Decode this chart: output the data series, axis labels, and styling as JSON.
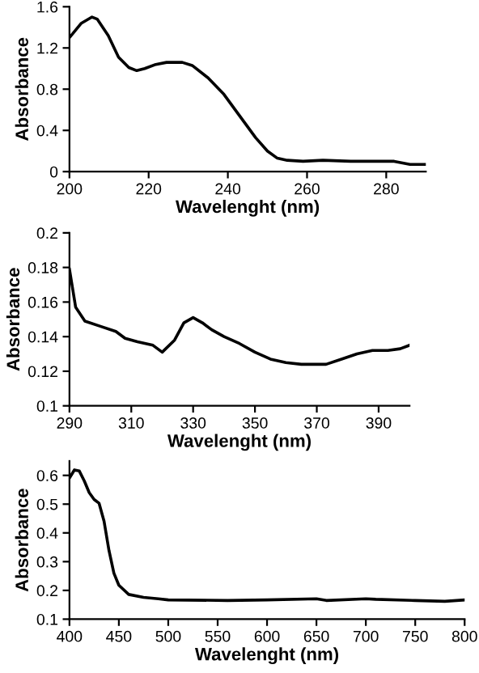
{
  "chart_data": [
    {
      "type": "line",
      "xlabel": "Wavelenght (nm)",
      "ylabel": "Absorbance",
      "xlim": [
        200,
        290
      ],
      "xticks": [
        200,
        220,
        240,
        260,
        280
      ],
      "ylim": [
        0,
        1.6
      ],
      "yticks": [
        0,
        0.4,
        0.8,
        1.2,
        1.6
      ],
      "grid": false,
      "series": [
        {
          "color": "#000000",
          "x": [
            200,
            203,
            205.7,
            207,
            209.8,
            212.4,
            215,
            217,
            219,
            221.8,
            224.5,
            228.5,
            231,
            235,
            239,
            243,
            247,
            250,
            252.5,
            255,
            259,
            264,
            271,
            282,
            286,
            290
          ],
          "values": [
            1.3,
            1.44,
            1.5,
            1.48,
            1.32,
            1.11,
            1.01,
            0.98,
            1.0,
            1.04,
            1.06,
            1.06,
            1.03,
            0.91,
            0.75,
            0.54,
            0.33,
            0.2,
            0.13,
            0.11,
            0.1,
            0.11,
            0.1,
            0.1,
            0.07,
            0.07
          ]
        }
      ]
    },
    {
      "type": "line",
      "xlabel": "Wavelenght (nm)",
      "ylabel": "Absorbance",
      "xlim": [
        290,
        400
      ],
      "xticks": [
        290,
        310,
        330,
        350,
        370,
        390
      ],
      "ylim": [
        0.1,
        0.2
      ],
      "yticks": [
        0.1,
        0.12,
        0.14,
        0.16,
        0.18,
        0.2
      ],
      "grid": false,
      "series": [
        {
          "color": "#000000",
          "x": [
            290,
            292,
            295,
            300,
            305,
            308,
            312,
            317,
            320,
            324,
            327,
            330,
            333,
            336,
            340,
            345,
            350,
            355,
            360,
            365,
            373,
            378,
            383,
            388,
            393,
            397,
            400
          ],
          "values": [
            0.179,
            0.157,
            0.149,
            0.146,
            0.143,
            0.139,
            0.137,
            0.135,
            0.131,
            0.138,
            0.148,
            0.151,
            0.148,
            0.144,
            0.14,
            0.136,
            0.131,
            0.127,
            0.125,
            0.124,
            0.124,
            0.127,
            0.13,
            0.132,
            0.132,
            0.133,
            0.135
          ]
        }
      ]
    },
    {
      "type": "line",
      "xlabel": "Wavelenght (nm)",
      "ylabel": "Absorbance",
      "xlim": [
        400,
        800
      ],
      "xticks": [
        400,
        450,
        500,
        550,
        600,
        650,
        700,
        750,
        800
      ],
      "ylim": [
        0.1,
        0.65
      ],
      "yticks": [
        0.1,
        0.2,
        0.3,
        0.4,
        0.5,
        0.6
      ],
      "grid": false,
      "series": [
        {
          "color": "#000000",
          "x": [
            400,
            405,
            410,
            415,
            420,
            425,
            430,
            435,
            440,
            445,
            450,
            460,
            475,
            490,
            500,
            560,
            600,
            650,
            660,
            700,
            710,
            750,
            780,
            800
          ],
          "values": [
            0.591,
            0.619,
            0.615,
            0.581,
            0.54,
            0.516,
            0.503,
            0.441,
            0.339,
            0.26,
            0.218,
            0.186,
            0.176,
            0.171,
            0.167,
            0.165,
            0.167,
            0.171,
            0.165,
            0.171,
            0.169,
            0.165,
            0.162,
            0.167
          ]
        }
      ]
    }
  ]
}
